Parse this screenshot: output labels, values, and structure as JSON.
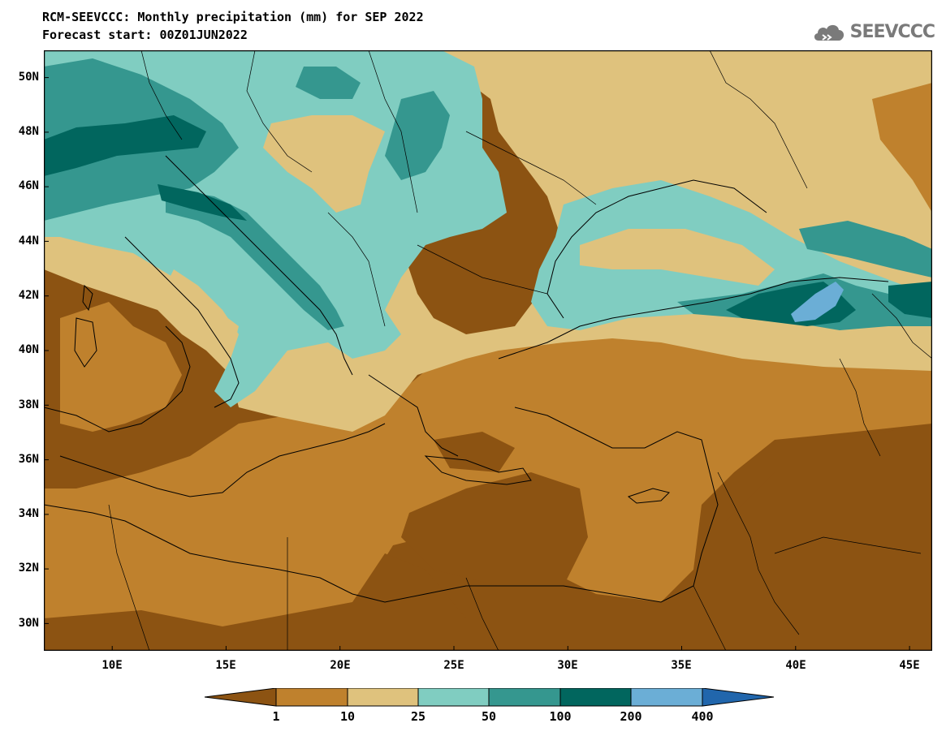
{
  "title_line1": "RCM-SEEVCCC: Monthly precipitation (mm) for SEP 2022",
  "title_line2": "Forecast start: 00Z01JUN2022",
  "logo": {
    "text": "SEEVCCC",
    "icon": "cloud-icon",
    "color": "#7a7a7a"
  },
  "map": {
    "lon_range": [
      7,
      46
    ],
    "lat_range": [
      29,
      51
    ],
    "lat_labels": [
      "50N",
      "48N",
      "46N",
      "44N",
      "42N",
      "40N",
      "38N",
      "36N",
      "34N",
      "32N",
      "30N"
    ],
    "lon_labels": [
      "10E",
      "15E",
      "20E",
      "25E",
      "30E",
      "35E",
      "40E",
      "45E"
    ]
  },
  "colorbar": {
    "labels": [
      "1",
      "10",
      "25",
      "50",
      "100",
      "200",
      "400"
    ],
    "colors": [
      "#8c5312",
      "#bf812d",
      "#dfc27d",
      "#80cdc1",
      "#35978f",
      "#01665e",
      "#6baed6",
      "#2166ac"
    ]
  }
}
